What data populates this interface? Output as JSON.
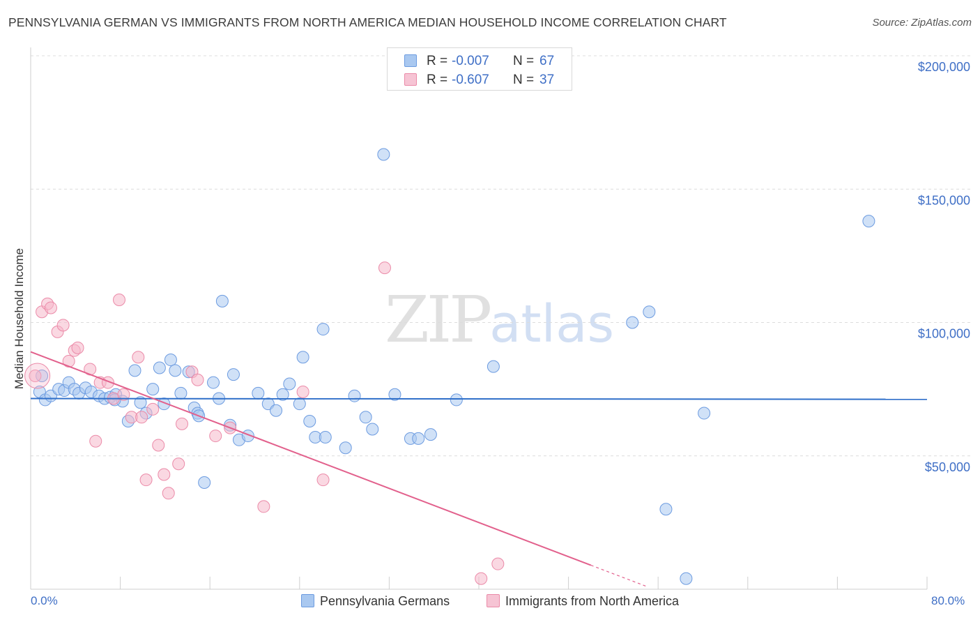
{
  "header": {
    "title": "PENNSYLVANIA GERMAN VS IMMIGRANTS FROM NORTH AMERICA MEDIAN HOUSEHOLD INCOME CORRELATION CHART",
    "source": "Source: ZipAtlas.com"
  },
  "watermark": {
    "zip": "ZIP",
    "atlas": "atlas"
  },
  "legend_top": {
    "rows": [
      {
        "r_label": "R =",
        "r_value": "-0.007",
        "n_label": "N =",
        "n_value": "67"
      },
      {
        "r_label": "R =",
        "r_value": "-0.607",
        "n_label": "N =",
        "n_value": "37"
      }
    ]
  },
  "legend_bottom": {
    "items": [
      {
        "label": "Pennsylvania Germans"
      },
      {
        "label": "Immigrants from North America"
      }
    ]
  },
  "colors": {
    "blue_fill": "#a9c8f0",
    "blue_stroke": "#6c9be0",
    "blue_line": "#2f6fc9",
    "pink_fill": "#f6b8cb",
    "pink_stroke": "#eb8aa8",
    "pink_line": "#e2608c",
    "axis_text": "#3f6fc6",
    "grid": "#dcdcdc"
  },
  "chart_data": {
    "type": "scatter",
    "title": "PENNSYLVANIA GERMAN VS IMMIGRANTS FROM NORTH AMERICA MEDIAN HOUSEHOLD INCOME CORRELATION CHART",
    "xlabel": "",
    "ylabel": "Median Household Income",
    "xlim": [
      0,
      80
    ],
    "ylim": [
      0,
      200000
    ],
    "x_tick_labels": [
      "0.0%",
      "80.0%"
    ],
    "y_ticks": [
      50000,
      100000,
      150000,
      200000
    ],
    "y_tick_labels": [
      "$50,000",
      "$100,000",
      "$150,000",
      "$200,000"
    ],
    "series": [
      {
        "name": "Pennsylvania Germans",
        "r": -0.007,
        "n": 67,
        "trend": {
          "x": [
            0,
            80
          ],
          "y": [
            71500,
            71200
          ]
        },
        "points": [
          [
            0.8,
            74000
          ],
          [
            1.3,
            71000
          ],
          [
            1.8,
            72500
          ],
          [
            2.5,
            75000
          ],
          [
            3.0,
            74500
          ],
          [
            3.4,
            77500
          ],
          [
            3.9,
            75000
          ],
          [
            4.3,
            73500
          ],
          [
            4.9,
            75500
          ],
          [
            5.4,
            74000
          ],
          [
            6.1,
            72500
          ],
          [
            6.6,
            71500
          ],
          [
            7.1,
            72000
          ],
          [
            7.6,
            73000
          ],
          [
            8.2,
            70500
          ],
          [
            8.7,
            63000
          ],
          [
            9.3,
            82000
          ],
          [
            9.8,
            70000
          ],
          [
            10.3,
            66000
          ],
          [
            10.9,
            75000
          ],
          [
            11.5,
            83000
          ],
          [
            11.9,
            69500
          ],
          [
            12.5,
            86000
          ],
          [
            12.9,
            82000
          ],
          [
            13.4,
            73500
          ],
          [
            14.1,
            81500
          ],
          [
            14.6,
            68000
          ],
          [
            14.9,
            66000
          ],
          [
            15.5,
            40000
          ],
          [
            16.3,
            77500
          ],
          [
            16.8,
            71500
          ],
          [
            17.1,
            108000
          ],
          [
            17.8,
            61500
          ],
          [
            18.1,
            80500
          ],
          [
            18.6,
            56000
          ],
          [
            19.4,
            57500
          ],
          [
            20.3,
            73500
          ],
          [
            21.2,
            69500
          ],
          [
            21.9,
            67000
          ],
          [
            22.5,
            73000
          ],
          [
            23.1,
            77000
          ],
          [
            24.0,
            69500
          ],
          [
            24.3,
            87000
          ],
          [
            24.9,
            63000
          ],
          [
            25.4,
            57000
          ],
          [
            26.1,
            97500
          ],
          [
            26.3,
            57000
          ],
          [
            28.1,
            53000
          ],
          [
            28.9,
            72500
          ],
          [
            29.9,
            64500
          ],
          [
            30.5,
            60000
          ],
          [
            31.5,
            163000
          ],
          [
            32.5,
            73000
          ],
          [
            33.9,
            56500
          ],
          [
            34.6,
            56500
          ],
          [
            35.7,
            58000
          ],
          [
            38.0,
            71000
          ],
          [
            41.3,
            83500
          ],
          [
            53.7,
            100000
          ],
          [
            55.2,
            104000
          ],
          [
            56.7,
            30000
          ],
          [
            58.5,
            4000
          ],
          [
            60.1,
            66000
          ],
          [
            74.8,
            138000
          ],
          [
            1.0,
            80000
          ],
          [
            7.5,
            71000
          ],
          [
            15.0,
            65000
          ]
        ]
      },
      {
        "name": "Immigrants from North America",
        "r": -0.607,
        "n": 37,
        "trend": {
          "x": [
            0,
            50
          ],
          "y": [
            89000,
            9000
          ]
        },
        "trend_dashed": {
          "x": [
            50,
            55
          ],
          "y": [
            9000,
            1000
          ]
        },
        "points": [
          [
            0.4,
            80000
          ],
          [
            1.0,
            104000
          ],
          [
            1.5,
            107000
          ],
          [
            1.8,
            105500
          ],
          [
            2.4,
            96500
          ],
          [
            2.9,
            99000
          ],
          [
            3.4,
            85500
          ],
          [
            3.9,
            89500
          ],
          [
            4.2,
            90500
          ],
          [
            5.3,
            82500
          ],
          [
            5.8,
            55500
          ],
          [
            6.2,
            77500
          ],
          [
            6.9,
            77500
          ],
          [
            7.4,
            71500
          ],
          [
            7.9,
            108500
          ],
          [
            8.3,
            73000
          ],
          [
            9.0,
            64500
          ],
          [
            9.6,
            87000
          ],
          [
            9.9,
            64500
          ],
          [
            10.3,
            41000
          ],
          [
            10.9,
            67500
          ],
          [
            11.4,
            54000
          ],
          [
            11.9,
            43000
          ],
          [
            12.3,
            36000
          ],
          [
            13.2,
            47000
          ],
          [
            13.5,
            62000
          ],
          [
            14.4,
            81500
          ],
          [
            14.9,
            78500
          ],
          [
            16.5,
            57500
          ],
          [
            17.8,
            60500
          ],
          [
            20.8,
            31000
          ],
          [
            24.3,
            74000
          ],
          [
            26.1,
            41000
          ],
          [
            31.6,
            120500
          ],
          [
            40.2,
            4000
          ],
          [
            41.7,
            9500
          ],
          [
            0.6,
            80000
          ]
        ]
      }
    ]
  }
}
